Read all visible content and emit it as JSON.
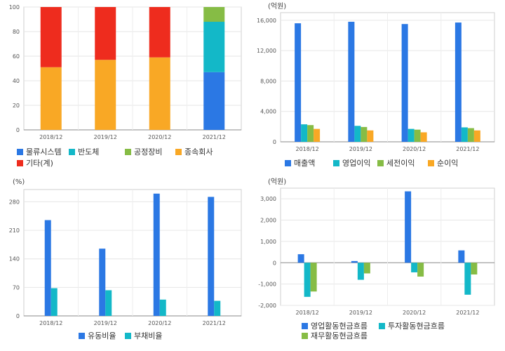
{
  "chart_data": [
    {
      "type": "bar",
      "stacked": true,
      "title": "",
      "ylim": [
        0,
        100
      ],
      "yticks": [
        0,
        20,
        40,
        60,
        80,
        100
      ],
      "categories": [
        "2018/12",
        "2019/12",
        "2020/12",
        "2021/12"
      ],
      "series": [
        {
          "name": "물류시스템",
          "color": "#2b78e4",
          "values": [
            0,
            0,
            0,
            47
          ]
        },
        {
          "name": "반도체",
          "color": "#13b8c8",
          "values": [
            0,
            0,
            0,
            41
          ]
        },
        {
          "name": "공정장비",
          "color": "#86bc45",
          "values": [
            0,
            0,
            0,
            12
          ]
        },
        {
          "name": "종속회사",
          "color": "#f9a825",
          "values": [
            51,
            57,
            59,
            0
          ]
        },
        {
          "name": "기타(계)",
          "color": "#ee2c1e",
          "values": [
            49,
            43,
            41,
            0
          ]
        }
      ],
      "grid": true,
      "legend_position": "bottom"
    },
    {
      "type": "bar",
      "unit": "(억원)",
      "ylim": [
        0,
        17000
      ],
      "yticks": [
        0,
        4000,
        8000,
        12000,
        16000
      ],
      "ytick_labels": [
        "0",
        "4,000",
        "8,000",
        "12,000",
        "16,000"
      ],
      "categories": [
        "2018/12",
        "2019/12",
        "2020/12",
        "2021/12"
      ],
      "series": [
        {
          "name": "매출액",
          "color": "#2b78e4",
          "values": [
            15600,
            15800,
            15500,
            15700
          ]
        },
        {
          "name": "영업이익",
          "color": "#13b8c8",
          "values": [
            2300,
            2100,
            1700,
            1900
          ]
        },
        {
          "name": "세전이익",
          "color": "#86bc45",
          "values": [
            2200,
            1950,
            1600,
            1800
          ]
        },
        {
          "name": "순이익",
          "color": "#f9a825",
          "values": [
            1700,
            1500,
            1250,
            1500
          ]
        }
      ],
      "grid": true,
      "legend_position": "bottom"
    },
    {
      "type": "bar",
      "unit": "(%)",
      "ylim": [
        0,
        310
      ],
      "yticks": [
        0,
        70,
        140,
        210,
        280
      ],
      "ytick_labels": [
        "0",
        "70",
        "140",
        "210",
        "280"
      ],
      "categories": [
        "2018/12",
        "2019/12",
        "2020/12",
        "2021/12"
      ],
      "series": [
        {
          "name": "유동비율",
          "color": "#2b78e4",
          "values": [
            235,
            165,
            300,
            292
          ]
        },
        {
          "name": "부채비율",
          "color": "#13b8c8",
          "values": [
            68,
            63,
            40,
            37
          ]
        }
      ],
      "grid": true,
      "legend_position": "bottom"
    },
    {
      "type": "bar",
      "unit": "(억원)",
      "ylim": [
        -2000,
        3500
      ],
      "yticks": [
        -2000,
        -1000,
        0,
        1000,
        2000,
        3000
      ],
      "ytick_labels": [
        "-2,000",
        "-1,000",
        "0",
        "1,000",
        "2,000",
        "3,000"
      ],
      "categories": [
        "2018/12",
        "2019/12",
        "2020/12",
        "2021/12"
      ],
      "series": [
        {
          "name": "영업활동현금흐름",
          "color": "#2b78e4",
          "values": [
            400,
            80,
            3350,
            580
          ]
        },
        {
          "name": "투자활동현금흐름",
          "color": "#13b8c8",
          "values": [
            -1600,
            -800,
            -450,
            -1500
          ]
        },
        {
          "name": "재무활동현금흐름",
          "color": "#86bc45",
          "values": [
            -1350,
            -500,
            -650,
            -550
          ]
        }
      ],
      "grid": true,
      "legend_position": "bottom"
    }
  ]
}
